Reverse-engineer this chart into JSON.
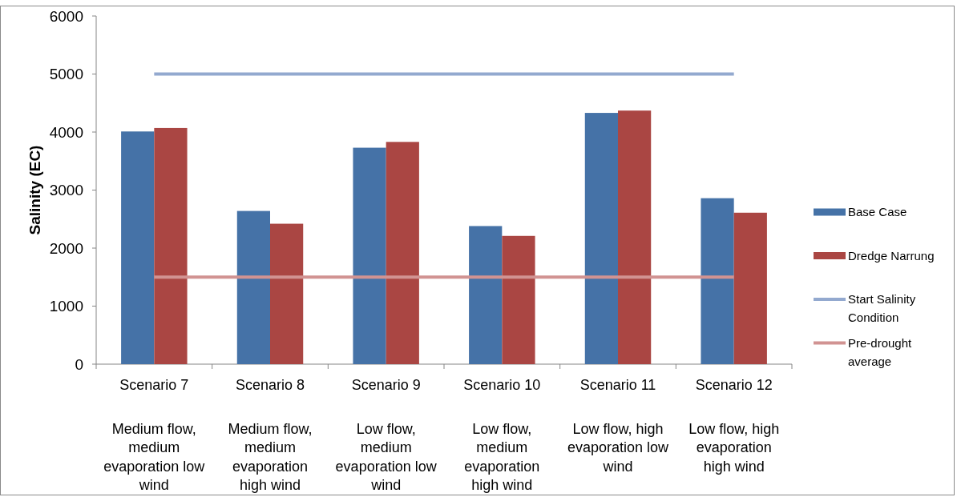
{
  "chart_data": {
    "type": "bar",
    "ylabel": "Salinity (EC)",
    "categories": [
      "Scenario 7\n\nMedium flow, medium evaporation low wind",
      "Scenario 8\n\nMedium flow, medium evaporation high wind",
      "Scenario 9\n\nLow flow, medium evaporation low wind",
      "Scenario 10\n\nLow flow, medium evaporation high wind",
      "Scenario 11\n\nLow flow, high evaporation low wind",
      "Scenario 12\n\nLow flow, high evaporation high wind"
    ],
    "series": [
      {
        "name": "Base Case",
        "color": "#4572a7",
        "values": [
          4010,
          2640,
          3730,
          2380,
          4330,
          2860
        ]
      },
      {
        "name": "Dredge Narrung",
        "color": "#aa4643",
        "values": [
          4070,
          2420,
          3830,
          2210,
          4370,
          2610
        ]
      },
      {
        "name": "Start Salinity Condition",
        "type": "line",
        "color": "#93a9cf",
        "values": [
          5000,
          5000,
          5000,
          5000,
          5000,
          5000
        ]
      },
      {
        "name": "Pre-drought average",
        "type": "line",
        "color": "#d19392",
        "values": [
          1500,
          1500,
          1500,
          1500,
          1500,
          1500
        ]
      }
    ],
    "ylim": [
      0,
      6000
    ],
    "yticks": [
      0,
      1000,
      2000,
      3000,
      4000,
      5000,
      6000
    ],
    "legend": "right"
  }
}
